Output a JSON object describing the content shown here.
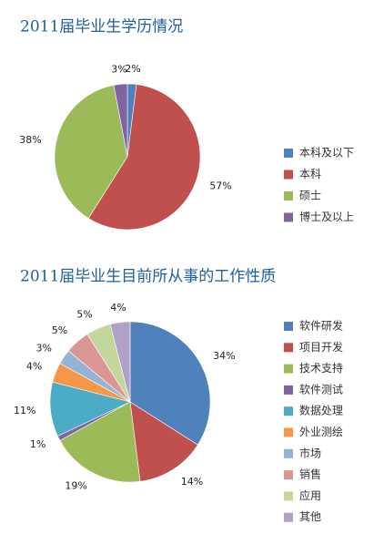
{
  "chart_data": [
    {
      "type": "pie",
      "title": "2011届毕业生学历情况",
      "categories": [
        "本科及以下",
        "本科",
        "硕士",
        "博士及以上"
      ],
      "values": [
        2,
        57,
        38,
        3
      ],
      "value_labels": [
        "2%",
        "57%",
        "38%",
        "3%"
      ],
      "colors": [
        "#4f81bd",
        "#c0504d",
        "#9bbb59",
        "#8064a2"
      ],
      "legend": "right"
    },
    {
      "type": "pie",
      "title": "2011届毕业生目前所从事的工作性质",
      "categories": [
        "软件研发",
        "项目开发",
        "技术支持",
        "软件测试",
        "数据处理",
        "外业测绘",
        "市场",
        "销售",
        "应用",
        "其他"
      ],
      "values": [
        34,
        14,
        19,
        1,
        11,
        4,
        3,
        5,
        5,
        4
      ],
      "value_labels": [
        "34%",
        "14%",
        "19%",
        "1%",
        "11%",
        "4%",
        "3%",
        "5%",
        "5%",
        "4%"
      ],
      "colors": [
        "#4f81bd",
        "#c0504d",
        "#9bbb59",
        "#8064a2",
        "#4bacc6",
        "#f79646",
        "#95b3d7",
        "#d99694",
        "#c3d69b",
        "#b2a1c7"
      ],
      "legend": "right"
    }
  ]
}
